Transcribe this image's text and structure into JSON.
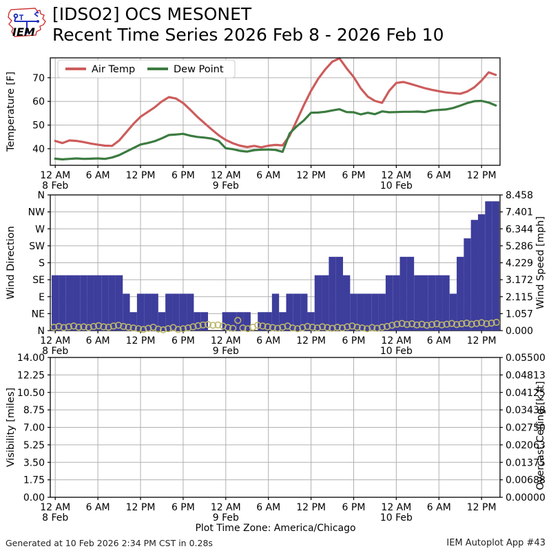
{
  "header": {
    "logo_text": "IEM",
    "title_line1": "[IDSO2] OCS MESONET",
    "title_line2": "Recent Time Series 2026 Feb 8 - 2026 Feb 10"
  },
  "footer": {
    "generated": "Generated at 10 Feb 2026 2:34 PM CST in 0.28s",
    "app": "IEM Autoplot App #43",
    "timezone_label": "Plot Time Zone: America/Chicago"
  },
  "colors": {
    "air_temp": "#cd5c5c",
    "dew_point": "#3c7b41",
    "wind_bar": "#3d3d9c",
    "wind_dir_circle": "#bdb76b",
    "grid": "#b0b0b0",
    "ceiling_label": "#2f9e2f",
    "logo_red": "#cc2222",
    "logo_blue": "#2233bb"
  },
  "time_axis": {
    "tick_hours": [
      0,
      6,
      12,
      18,
      24,
      30,
      36,
      42,
      48,
      54,
      60
    ],
    "tick_labels": [
      "12 AM",
      "6 AM",
      "12 PM",
      "6 PM",
      "12 AM",
      "6 AM",
      "12 PM",
      "6 PM",
      "12 AM",
      "6 AM",
      "12 PM"
    ],
    "date_labels": [
      {
        "hour": 0,
        "label": "8 Feb"
      },
      {
        "hour": 24,
        "label": "9 Feb"
      },
      {
        "hour": 48,
        "label": "10 Feb"
      }
    ],
    "xlim": [
      -0.7,
      62.6
    ]
  },
  "chart_data": [
    {
      "type": "line",
      "panel": "temperature",
      "ylabel": "Temperature [F]",
      "yticks": [
        40,
        50,
        60,
        70
      ],
      "ylim": [
        33.0,
        78.4
      ],
      "x_start": 0,
      "x_step": 1,
      "legend_position": "upper-left",
      "series": [
        {
          "name": "Air Temp",
          "color": "#cd5c5c",
          "values": [
            43.3,
            42.4,
            43.5,
            43.3,
            42.8,
            42.2,
            41.7,
            41.3,
            41.2,
            43.5,
            47.0,
            50.5,
            53.5,
            55.5,
            57.5,
            60.0,
            61.8,
            61.2,
            59.3,
            56.5,
            53.5,
            50.8,
            48.2,
            45.7,
            43.7,
            42.3,
            41.3,
            40.7,
            41.2,
            40.6,
            41.3,
            41.6,
            41.4,
            45.5,
            52.0,
            58.5,
            64.5,
            69.5,
            73.5,
            76.8,
            78.2,
            74.0,
            70.3,
            65.5,
            62.0,
            60.2,
            59.4,
            64.5,
            67.8,
            68.2,
            67.4,
            66.5,
            65.6,
            64.9,
            64.3,
            63.8,
            63.5,
            63.2,
            64.2,
            66.0,
            68.8,
            72.3,
            71.2
          ]
        },
        {
          "name": "Dew Point",
          "color": "#3c7b41",
          "values": [
            35.8,
            35.5,
            35.7,
            35.9,
            35.7,
            35.8,
            35.9,
            35.7,
            36.3,
            37.3,
            38.8,
            40.3,
            41.8,
            42.4,
            43.2,
            44.4,
            45.8,
            46.0,
            46.3,
            45.5,
            45.0,
            44.7,
            44.3,
            43.3,
            40.2,
            39.8,
            39.1,
            38.8,
            39.4,
            39.6,
            39.7,
            39.5,
            38.7,
            46.5,
            49.5,
            52.0,
            55.2,
            55.3,
            55.6,
            56.2,
            56.7,
            55.5,
            55.4,
            54.5,
            55.2,
            54.6,
            55.8,
            55.4,
            55.5,
            55.6,
            55.6,
            55.7,
            55.5,
            56.2,
            56.4,
            56.6,
            57.2,
            58.2,
            59.3,
            60.1,
            60.2,
            59.5,
            58.3
          ]
        }
      ]
    },
    {
      "type": "bar",
      "panel": "wind",
      "ylabel_left": "Wind Direction",
      "ylabel_right": "Wind Speed [mph]",
      "left_ticks": [
        "N",
        "NE",
        "E",
        "SE",
        "S",
        "SW",
        "W",
        "NW",
        "N"
      ],
      "right_ticks": [
        "0.000",
        "1.057",
        "2.115",
        "3.172",
        "4.229",
        "5.286",
        "6.344",
        "7.401",
        "8.458"
      ],
      "speed_max": 8.458,
      "direction_max_deg": 360,
      "bar_values_mph": [
        3.45,
        3.45,
        3.45,
        3.45,
        3.45,
        3.45,
        3.45,
        3.45,
        3.45,
        3.45,
        2.3,
        1.15,
        2.3,
        2.3,
        2.3,
        1.15,
        2.3,
        2.3,
        2.3,
        2.3,
        1.15,
        1.15,
        0,
        0,
        1.15,
        1.15,
        1.15,
        1.15,
        0,
        1.15,
        1.15,
        2.3,
        1.15,
        2.3,
        2.3,
        2.3,
        1.15,
        3.45,
        3.45,
        4.6,
        4.6,
        3.45,
        2.3,
        2.3,
        2.3,
        2.3,
        2.3,
        3.45,
        3.45,
        4.6,
        4.6,
        3.45,
        3.45,
        3.45,
        3.45,
        3.45,
        2.3,
        4.6,
        5.75,
        6.9,
        7.25,
        8.06,
        8.06
      ],
      "bar_gap_hours": [
        6.35,
        48.0
      ],
      "direction_circles": {
        "start_hour": -0.2,
        "step_hours": 0.7,
        "degrees": [
          9,
          11,
          8,
          10,
          12,
          9,
          10,
          8,
          11,
          13,
          10,
          9,
          12,
          14,
          11,
          9,
          7,
          5,
          3,
          6,
          9,
          4,
          2,
          5,
          8,
          3,
          5,
          7,
          10,
          13,
          15,
          16,
          14,
          15,
          12,
          8,
          6,
          27,
          7,
          5,
          9,
          14,
          12,
          10,
          8,
          6,
          9,
          12,
          7,
          5,
          8,
          11,
          9,
          7,
          10,
          8,
          6,
          9,
          7,
          10,
          12,
          9,
          7,
          5,
          8,
          6,
          9,
          11,
          14,
          17,
          19,
          16,
          18,
          15,
          17,
          14,
          16,
          18,
          15,
          17,
          19,
          16,
          18,
          20,
          17,
          19,
          21,
          18,
          20,
          22
        ]
      }
    },
    {
      "type": "line",
      "panel": "visibility",
      "ylabel_left": "Visibility [miles]",
      "ylabel_right": "Overcast Ceiling [k ft]",
      "left_ticks": [
        "0.00",
        "1.75",
        "3.50",
        "5.25",
        "7.00",
        "8.75",
        "10.50",
        "12.25",
        "14.00"
      ],
      "right_ticks": [
        "0.00000",
        "0.00688",
        "0.01375",
        "0.02063",
        "0.02750",
        "0.03438",
        "0.04125",
        "0.04813",
        "0.05500"
      ],
      "series": []
    }
  ]
}
